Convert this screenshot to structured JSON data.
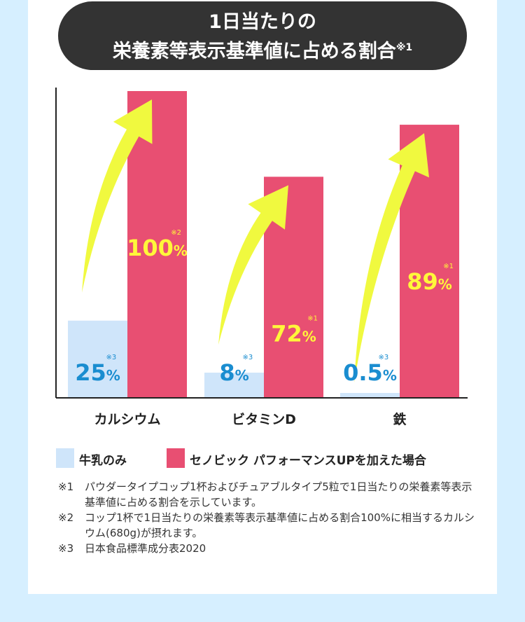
{
  "title": {
    "line1": "1日当たりの",
    "line2": "栄養素等表示基準値に占める割合",
    "note": "※1"
  },
  "colors": {
    "page_bg": "#d6efff",
    "milk": "#cfe5fa",
    "cenovis": "#e84f72",
    "milk_label": "#1a8dd0",
    "cenovis_label": "#fff73a",
    "arrow": "#f0f93f",
    "axis": "#222222"
  },
  "chart_data": {
    "type": "bar",
    "title": "1日当たりの 栄養素等表示基準値に占める割合",
    "ylim": [
      0,
      100
    ],
    "categories": [
      "カルシウム",
      "ビタミンD",
      "鉄"
    ],
    "series": [
      {
        "name": "牛乳のみ",
        "values": [
          25,
          8,
          0.5
        ],
        "labels": [
          "25",
          "8",
          "0.5"
        ],
        "notes": [
          "※3",
          "※3",
          "※3"
        ]
      },
      {
        "name": "セノビック パフォーマンスUPを加えた場合",
        "values": [
          100,
          72,
          89
        ],
        "labels": [
          "100",
          "72",
          "89"
        ],
        "notes": [
          "※2",
          "※1",
          "※1"
        ]
      }
    ],
    "unit": "%",
    "legend": "bottom",
    "grid": false
  },
  "notes": [
    {
      "mark": "※1",
      "text": "パウダータイプコップ1杯およびチュアブルタイプ5粒で1日当たりの栄養素等表示基準値に占める割合を示しています。"
    },
    {
      "mark": "※2",
      "text": "コップ1杯で1日当たりの栄養素等表示基準値に占める割合100%に相当するカルシウム(680g)が摂れます。"
    },
    {
      "mark": "※3",
      "text": "日本食品標準成分表2020"
    }
  ]
}
